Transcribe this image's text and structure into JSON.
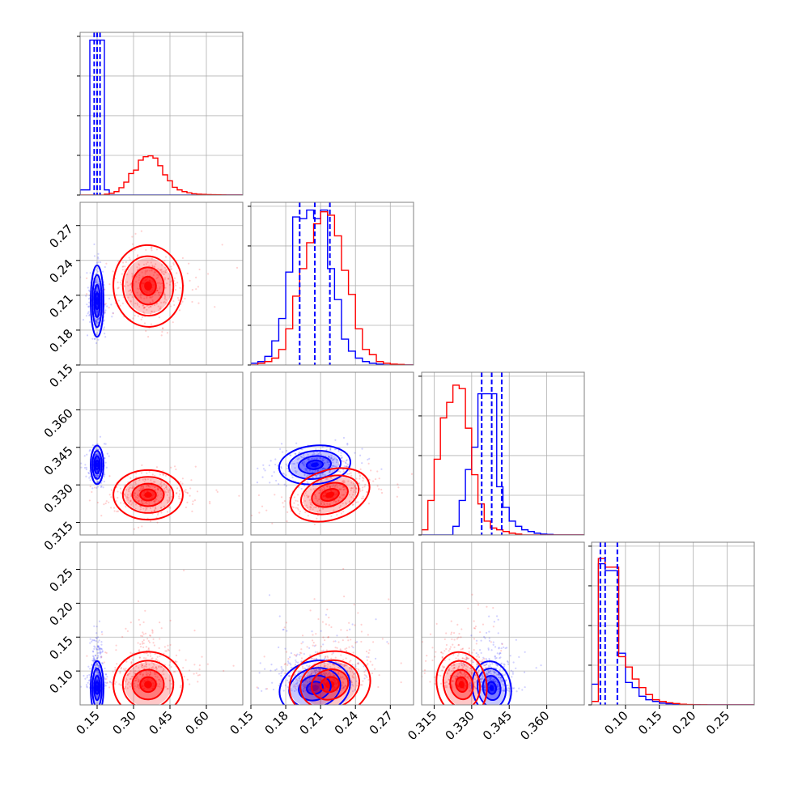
{
  "colors": {
    "series_a": "#0000ff",
    "series_b": "#ff0000",
    "grid": "#b0b0b0",
    "frame": "#808080"
  },
  "chart_data": {
    "type": "corner",
    "grid": true,
    "parameters": [
      {
        "key": "p1",
        "range": [
          0.08,
          0.75
        ],
        "ticks": [
          0.15,
          0.3,
          0.45,
          0.6
        ],
        "tick_labels": [
          "0.15",
          "0.30",
          "0.45",
          "0.60"
        ]
      },
      {
        "key": "p2",
        "range": [
          0.15,
          0.29
        ],
        "ticks": [
          0.15,
          0.18,
          0.21,
          0.24,
          0.27
        ],
        "tick_labels": [
          "0.15",
          "0.18",
          "0.21",
          "0.24",
          "0.27"
        ]
      },
      {
        "key": "p3",
        "range": [
          0.31,
          0.375
        ],
        "ticks": [
          0.315,
          0.33,
          0.345,
          0.36
        ],
        "tick_labels": [
          "0.315",
          "0.330",
          "0.345",
          "0.360"
        ]
      },
      {
        "key": "p4",
        "range": [
          0.05,
          0.29
        ],
        "ticks": [
          0.1,
          0.15,
          0.2,
          0.25
        ],
        "tick_labels": [
          "0.10",
          "0.15",
          "0.20",
          "0.25"
        ]
      }
    ],
    "series": [
      {
        "color": "blue",
        "means": [
          0.15,
          0.205,
          0.338,
          0.075
        ],
        "sds": [
          0.012,
          0.014,
          0.0035,
          0.018
        ],
        "correlations": {
          "1-2": 0.0,
          "1-3": 0.0,
          "1-4": 0.0,
          "2-3": 0.2,
          "2-4": 0.5,
          "3-4": 0.3
        },
        "quantiles": [
          [
            0.138,
            0.15,
            0.162
          ],
          [
            0.192,
            0.205,
            0.218
          ],
          [
            0.334,
            0.338,
            0.342
          ],
          [
            0.063,
            0.07,
            0.088
          ]
        ]
      },
      {
        "color": "red",
        "means": [
          0.36,
          0.218,
          0.326,
          0.08
        ],
        "sds": [
          0.065,
          0.016,
          0.0045,
          0.022
        ],
        "correlations": {
          "1-2": 0.1,
          "1-3": 0.0,
          "1-4": 0.1,
          "2-3": 0.6,
          "2-4": 0.5,
          "3-4": 0.4
        }
      }
    ],
    "histograms": [
      {
        "bin_edges": [
          0.08,
          0.1,
          0.12,
          0.14,
          0.16,
          0.18,
          0.2,
          0.22,
          0.24,
          0.26,
          0.28,
          0.3,
          0.32,
          0.34,
          0.36,
          0.38,
          0.4,
          0.42,
          0.44,
          0.46,
          0.48,
          0.5,
          0.52,
          0.54,
          0.56,
          0.58,
          0.6,
          0.62,
          0.64,
          0.66,
          0.68,
          0.7,
          0.72,
          0.74,
          0.75
        ],
        "blue": [
          0.12,
          0.12,
          3.6,
          3.6,
          3.6,
          0.12,
          0,
          0,
          0,
          0,
          0,
          0,
          0,
          0,
          0,
          0,
          0,
          0,
          0,
          0,
          0,
          0,
          0,
          0,
          0,
          0,
          0,
          0,
          0,
          0,
          0,
          0,
          0,
          0
        ],
        "red": [
          0,
          0,
          0,
          0,
          0,
          0.02,
          0.04,
          0.08,
          0.17,
          0.3,
          0.5,
          0.58,
          0.81,
          0.89,
          0.91,
          0.86,
          0.68,
          0.47,
          0.33,
          0.18,
          0.12,
          0.08,
          0.05,
          0.03,
          0.02,
          0.015,
          0.01,
          0.008,
          0.005,
          0.003,
          0.002,
          0.001,
          0.001,
          0.001
        ]
      },
      {
        "bin_edges": [
          0.15,
          0.156,
          0.162,
          0.168,
          0.174,
          0.18,
          0.186,
          0.192,
          0.198,
          0.204,
          0.21,
          0.216,
          0.222,
          0.228,
          0.234,
          0.24,
          0.246,
          0.252,
          0.258,
          0.264,
          0.27,
          0.276,
          0.282,
          0.288,
          0.29
        ],
        "blue": [
          0.01,
          0.02,
          0.05,
          0.14,
          0.27,
          0.54,
          0.86,
          0.85,
          0.9,
          0.85,
          0.9,
          0.56,
          0.38,
          0.15,
          0.08,
          0.04,
          0.02,
          0.01,
          0.005,
          0,
          0,
          0,
          0,
          0
        ],
        "red": [
          0,
          0.01,
          0.02,
          0.04,
          0.09,
          0.21,
          0.4,
          0.56,
          0.71,
          0.82,
          0.89,
          0.87,
          0.75,
          0.55,
          0.41,
          0.21,
          0.09,
          0.06,
          0.02,
          0.01,
          0.005,
          0.003,
          0,
          0
        ]
      },
      {
        "bin_edges": [
          0.31,
          0.3125,
          0.315,
          0.3175,
          0.32,
          0.3225,
          0.325,
          0.3275,
          0.33,
          0.3325,
          0.335,
          0.3375,
          0.34,
          0.3425,
          0.345,
          0.3475,
          0.35,
          0.3525,
          0.355,
          0.3575,
          0.36,
          0.3625,
          0.365,
          0.3675,
          0.37,
          0.375
        ],
        "blue": [
          0,
          0,
          0,
          0,
          0,
          0.05,
          0.2,
          0.38,
          0.51,
          0.82,
          0.82,
          0.82,
          0.28,
          0.16,
          0.08,
          0.05,
          0.03,
          0.02,
          0.01,
          0.005,
          0.003,
          0,
          0,
          0,
          0
        ],
        "red": [
          0.03,
          0.2,
          0.44,
          0.68,
          0.77,
          0.87,
          0.85,
          0.62,
          0.35,
          0.18,
          0.08,
          0.04,
          0.03,
          0.02,
          0.01,
          0.005,
          0,
          0,
          0,
          0,
          0,
          0,
          0,
          0,
          0
        ]
      },
      {
        "bin_edges": [
          0.05,
          0.06,
          0.07,
          0.08,
          0.09,
          0.1,
          0.11,
          0.12,
          0.13,
          0.14,
          0.15,
          0.16,
          0.17,
          0.18,
          0.19,
          0.2,
          0.21,
          0.22,
          0.23,
          0.24,
          0.25,
          0.26,
          0.27,
          0.28,
          0.29
        ],
        "blue": [
          0.12,
          0.82,
          0.78,
          0.78,
          0.3,
          0.13,
          0.1,
          0.05,
          0.03,
          0.02,
          0.01,
          0.006,
          0.004,
          0.002,
          0.001,
          0.001,
          0,
          0,
          0,
          0,
          0,
          0,
          0,
          0
        ],
        "red": [
          0.02,
          0.85,
          0.8,
          0.8,
          0.28,
          0.22,
          0.15,
          0.1,
          0.06,
          0.03,
          0.02,
          0.012,
          0.008,
          0.004,
          0.002,
          0.001,
          0.001,
          0,
          0,
          0,
          0,
          0,
          0,
          0
        ]
      }
    ]
  }
}
